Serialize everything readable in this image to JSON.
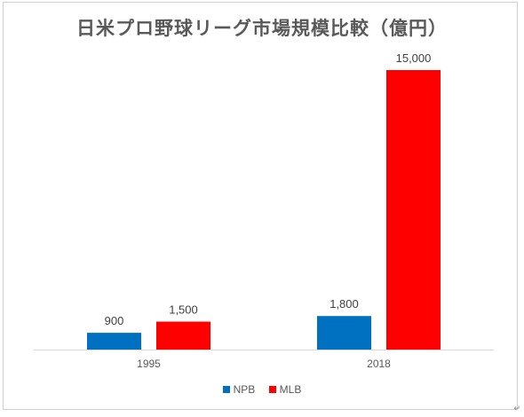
{
  "chart_data": {
    "type": "bar",
    "title": "日米プロ野球リーグ市場規模比較（億円）",
    "categories": [
      "1995",
      "2018"
    ],
    "series": [
      {
        "name": "NPB",
        "values": [
          900,
          1800
        ],
        "labels": [
          "900",
          "1,800"
        ],
        "color": "#0070C0"
      },
      {
        "name": "MLB",
        "values": [
          1500,
          15000
        ],
        "labels": [
          "1,500",
          "15,000"
        ],
        "color": "#FF0000"
      }
    ],
    "xlabel": "",
    "ylabel": "",
    "ylim": [
      0,
      15000
    ],
    "grid": false,
    "legend": "bottom"
  },
  "page": {
    "return_mark": "↵"
  }
}
